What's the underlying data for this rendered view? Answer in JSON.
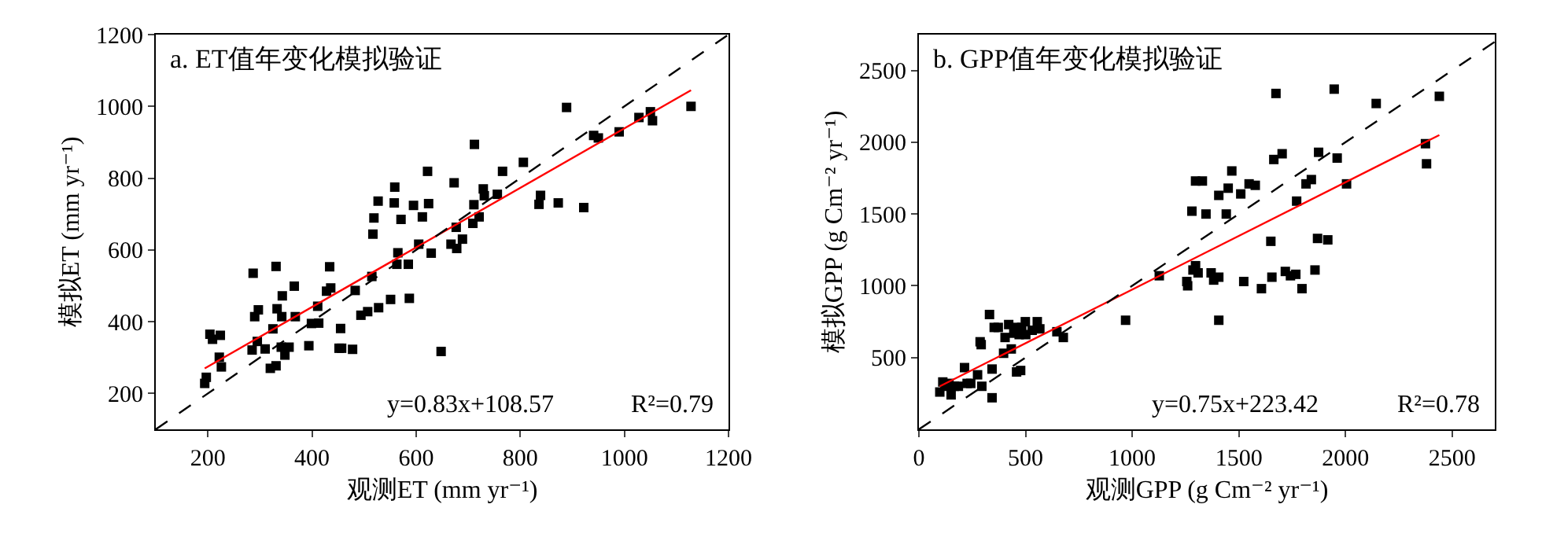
{
  "chart_data": [
    {
      "type": "scatter",
      "title": "a. ET值年变化模拟验证",
      "xlabel": "观测ET (mm yr⁻¹)",
      "ylabel": "模拟ET (mm yr⁻¹)",
      "xlim": [
        100,
        1200
      ],
      "ylim": [
        100,
        1200
      ],
      "xticks": [
        200,
        400,
        600,
        800,
        1000,
        1200
      ],
      "yticks": [
        200,
        400,
        600,
        800,
        1000,
        1200
      ],
      "grid": false,
      "marker": "square",
      "annotations": [
        "y=0.83x+108.57",
        "R²=0.79"
      ],
      "series": [
        {
          "color": "#000000",
          "x": [
            194,
            197,
            204,
            209,
            224,
            222,
            226,
            287,
            290,
            297,
            285,
            295,
            310,
            320,
            331,
            331,
            333,
            342,
            343,
            325,
            341,
            348,
            356,
            366,
            368,
            394,
            399,
            413,
            411,
            428,
            436,
            434,
            455,
            452,
            457,
            478,
            483,
            494,
            507,
            515,
            517,
            519,
            527,
            528,
            551,
            558,
            559,
            563,
            565,
            571,
            585,
            587,
            595,
            605,
            612,
            622,
            624,
            629,
            648,
            667,
            673,
            678,
            677,
            689,
            709,
            711,
            712,
            721,
            729,
            731,
            756,
            766,
            806,
            836,
            839,
            873,
            889,
            922,
            941,
            950,
            990,
            1028,
            1050,
            1054,
            1128
          ],
          "values": [
            228,
            245,
            365,
            351,
            362,
            301,
            274,
            535,
            414,
            433,
            321,
            345,
            324,
            270,
            277,
            554,
            436,
            414,
            472,
            380,
            329,
            307,
            329,
            499,
            414,
            333,
            395,
            396,
            443,
            485,
            494,
            553,
            381,
            326,
            326,
            323,
            487,
            418,
            428,
            526,
            644,
            689,
            736,
            439,
            462,
            731,
            775,
            560,
            592,
            685,
            560,
            465,
            724,
            616,
            692,
            819,
            729,
            591,
            317,
            616,
            787,
            604,
            663,
            630,
            674,
            726,
            894,
            692,
            770,
            751,
            755,
            819,
            844,
            727,
            752,
            731,
            997,
            718,
            919,
            912,
            929,
            969,
            985,
            960,
            1000
          ]
        },
        {
          "type": "line",
          "marker": "none",
          "color": "#ff0000",
          "line_style": "solid",
          "x": [
            194,
            1128
          ],
          "values": [
            270,
            1045
          ]
        },
        {
          "type": "line",
          "marker": "none",
          "color": "#000000",
          "line_style": "dashed",
          "x": [
            100,
            1200
          ],
          "values": [
            100,
            1200
          ]
        }
      ]
    },
    {
      "type": "scatter",
      "title": "b. GPP值年变化模拟验证",
      "xlabel": "观测GPP (g Cm⁻² yr⁻¹)",
      "ylabel": "模拟GPP (g Cm⁻² yr⁻¹)",
      "xlim": [
        0,
        2700
      ],
      "ylim": [
        0,
        2750
      ],
      "xticks": [
        0,
        500,
        1000,
        1500,
        2000,
        2500
      ],
      "yticks": [
        500,
        1000,
        1500,
        2000,
        2500
      ],
      "grid": false,
      "marker": "square",
      "annotations": [
        "y=0.75x+223.42",
        "R²=0.78"
      ],
      "series": [
        {
          "color": "#000000",
          "x": [
            98,
            112,
            122,
            141,
            151,
            166,
            185,
            214,
            226,
            243,
            275,
            295,
            287,
            292,
            331,
            343,
            343,
            353,
            372,
            397,
            404,
            421,
            433,
            445,
            453,
            458,
            470,
            477,
            482,
            499,
            501,
            531,
            555,
            567,
            647,
            677,
            969,
            1127,
            1256,
            1260,
            1280,
            1297,
            1329,
            1285,
            1297,
            1309,
            1346,
            1370,
            1382,
            1406,
            1406,
            1406,
            1441,
            1450,
            1467,
            1509,
            1523,
            1548,
            1577,
            1606,
            1650,
            1655,
            1664,
            1674,
            1703,
            1718,
            1742,
            1767,
            1771,
            1796,
            1815,
            1840,
            1857,
            1869,
            1874,
            1917,
            1947,
            1961,
            2005,
            2144,
            2375,
            2380,
            2440
          ],
          "values": [
            260,
            330,
            300,
            320,
            240,
            300,
            300,
            430,
            320,
            320,
            380,
            300,
            610,
            590,
            800,
            220,
            420,
            710,
            710,
            530,
            640,
            730,
            560,
            670,
            710,
            400,
            660,
            410,
            710,
            750,
            660,
            690,
            750,
            700,
            680,
            640,
            760,
            1070,
            1030,
            1000,
            1520,
            1730,
            1730,
            1110,
            1140,
            1090,
            1500,
            1090,
            1040,
            1060,
            760,
            1630,
            1500,
            1680,
            1800,
            1640,
            1030,
            1710,
            1700,
            980,
            1310,
            1060,
            1880,
            2340,
            1920,
            1100,
            1070,
            1080,
            1590,
            980,
            1710,
            1740,
            1110,
            1330,
            1930,
            1320,
            2370,
            1890,
            1710,
            2270,
            1990,
            1850,
            2320
          ]
        },
        {
          "type": "line",
          "marker": "none",
          "color": "#ff0000",
          "line_style": "solid",
          "x": [
            98,
            2440
          ],
          "values": [
            300,
            2050
          ]
        },
        {
          "type": "line",
          "marker": "none",
          "color": "#000000",
          "line_style": "dashed",
          "x": [
            0,
            2700
          ],
          "values": [
            0,
            2700
          ]
        }
      ]
    }
  ]
}
